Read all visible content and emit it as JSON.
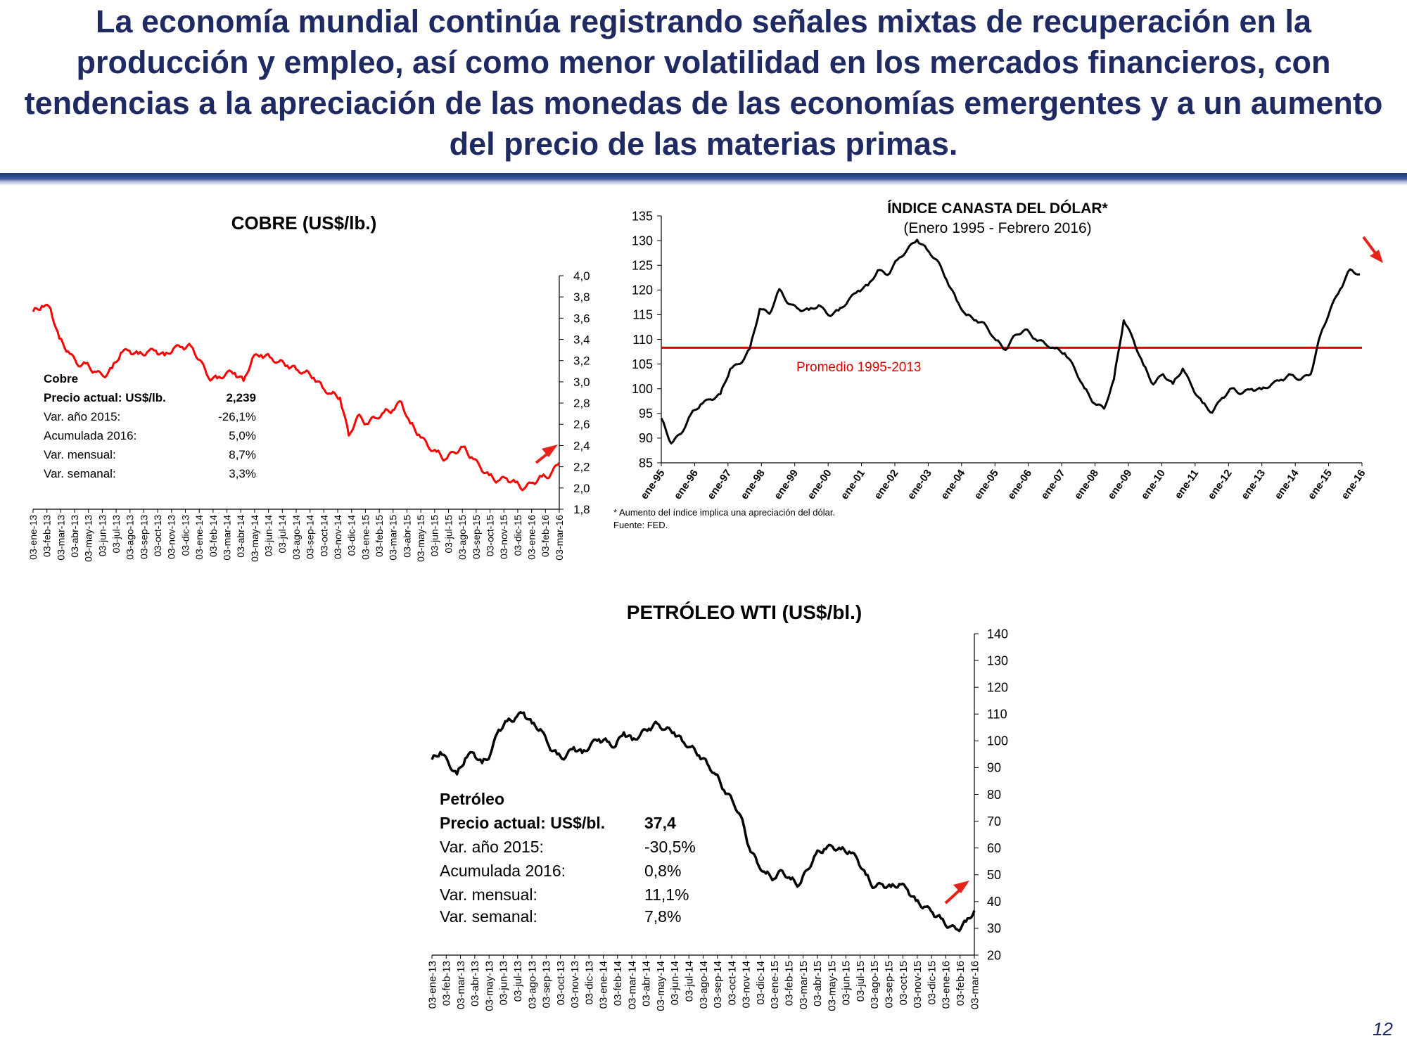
{
  "headline": "La economía mundial continúa registrando señales mixtas de recuperación en la producción y empleo, así como menor volatilidad en los mercados financieros, con tendencias a la apreciación de las monedas de las economías emergentes y a un aumento del precio de las materias primas.",
  "page_number": "12",
  "colors": {
    "headline": "#1f2a63",
    "copper_line": "#ff0000",
    "dollar_line": "#000000",
    "oil_line": "#000000",
    "average_line": "#e00000",
    "arrow": "#e8211a",
    "rule_dark": "#1f3a73"
  },
  "chart_data": [
    {
      "id": "copper",
      "type": "line",
      "title": "COBRE (US$/lb.)",
      "ylim": [
        1.8,
        4.0
      ],
      "y_ticks": [
        "4,0",
        "3,8",
        "3,6",
        "3,4",
        "3,2",
        "3,0",
        "2,8",
        "2,6",
        "2,4",
        "2,2",
        "2,0",
        "1,8"
      ],
      "x_ticks": [
        "03-ene-13",
        "03-feb-13",
        "03-mar-13",
        "03-abr-13",
        "03-may-13",
        "03-jun-13",
        "03-jul-13",
        "03-ago-13",
        "03-sep-13",
        "03-oct-13",
        "03-nov-13",
        "03-dic-13",
        "03-ene-14",
        "03-feb-14",
        "03-mar-14",
        "03-abr-14",
        "03-may-14",
        "03-jun-14",
        "03-jul-14",
        "03-ago-14",
        "03-sep-14",
        "03-oct-14",
        "03-nov-14",
        "03-dic-14",
        "03-ene-15",
        "03-feb-15",
        "03-mar-15",
        "03-abr-15",
        "03-may-15",
        "03-jun-15",
        "03-jul-15",
        "03-ago-15",
        "03-sep-15",
        "03-oct-15",
        "03-nov-15",
        "03-dic-15",
        "03-ene-16",
        "03-feb-16",
        "03-mar-16"
      ],
      "series": [
        {
          "values": [
            3.66,
            3.72,
            3.7,
            3.42,
            3.3,
            3.18,
            3.18,
            3.1,
            3.05,
            3.12,
            3.26,
            3.28,
            3.25,
            3.27,
            3.29,
            3.25,
            3.32,
            3.34,
            3.35,
            3.22,
            3.05,
            3.04,
            3.08,
            3.08,
            3.0,
            3.21,
            3.24,
            3.22,
            3.18,
            3.15,
            3.12,
            3.1,
            3.05,
            2.96,
            2.9,
            2.86,
            2.5,
            2.68,
            2.6,
            2.65,
            2.7,
            2.72,
            2.8,
            2.6,
            2.5,
            2.4,
            2.35,
            2.28,
            2.35,
            2.4,
            2.3,
            2.2,
            2.12,
            2.06,
            2.08,
            2.04,
            1.98,
            2.04,
            2.1,
            2.12,
            2.24
          ]
        }
      ],
      "info": {
        "heading": "Cobre",
        "rows": [
          {
            "label": "Precio actual: US$/lb.",
            "value": "2,239",
            "bold": true
          },
          {
            "label": "Var. año 2015:",
            "value": "-26,1%"
          },
          {
            "label": "Acumulada 2016:",
            "value": "5,0%"
          },
          {
            "label": "Var. mensual:",
            "value": "8,7%"
          },
          {
            "label": "Var. semanal:",
            "value": "3,3%"
          }
        ]
      }
    },
    {
      "id": "dollar",
      "type": "line",
      "title": "ÍNDICE CANASTA DEL DÓLAR*",
      "subtitle": "(Enero 1995 -  Febrero 2016)",
      "ylim": [
        85,
        135
      ],
      "y_ticks": [
        "135",
        "130",
        "125",
        "120",
        "115",
        "110",
        "105",
        "100",
        "95",
        "90",
        "85"
      ],
      "x_ticks": [
        "ene-95",
        "ene-96",
        "ene-97",
        "ene-98",
        "ene-99",
        "ene-00",
        "ene-01",
        "ene-02",
        "ene-03",
        "ene-04",
        "ene-05",
        "ene-06",
        "ene-07",
        "ene-08",
        "ene-09",
        "ene-10",
        "ene-11",
        "ene-12",
        "ene-13",
        "ene-14",
        "ene-15",
        "ene-16"
      ],
      "series": [
        {
          "values": [
            94,
            89,
            91,
            95,
            97,
            98,
            99,
            104,
            105,
            108,
            116,
            115,
            120,
            117,
            116,
            116,
            117,
            115,
            116,
            118,
            120,
            121,
            124,
            123,
            126,
            128,
            130,
            128,
            126,
            122,
            118,
            115,
            114,
            113,
            110,
            108,
            111,
            112,
            110,
            109,
            108,
            107,
            104,
            100,
            97,
            96,
            102,
            114,
            110,
            105,
            101,
            103,
            101,
            104,
            100,
            97,
            95,
            98,
            100,
            99,
            100,
            100,
            101,
            102,
            103,
            102,
            103,
            111,
            116,
            120,
            124,
            123
          ]
        }
      ],
      "reference": {
        "value": 108.3,
        "label": "Promedio 1995-2013"
      },
      "notes": [
        "* Aumento del índice  implica una apreciación del dólar.",
        "Fuente: FED."
      ]
    },
    {
      "id": "oil",
      "type": "line",
      "title": "PETRÓLEO WTI (US$/bl.)",
      "ylim": [
        20,
        140
      ],
      "y_ticks": [
        "140",
        "130",
        "120",
        "110",
        "100",
        "90",
        "80",
        "70",
        "60",
        "50",
        "40",
        "30",
        "20"
      ],
      "x_ticks": [
        "03-ene-13",
        "03-feb-13",
        "03-mar-13",
        "03-abr-13",
        "03-may-13",
        "03-jun-13",
        "03-jul-13",
        "03-ago-13",
        "03-sep-13",
        "03-oct-13",
        "03-nov-13",
        "03-dic-13",
        "03-ene-14",
        "03-feb-14",
        "03-mar-14",
        "03-abr-14",
        "03-may-14",
        "03-jun-14",
        "03-jul-14",
        "03-ago-14",
        "03-sep-14",
        "03-oct-14",
        "03-nov-14",
        "03-dic-14",
        "03-ene-15",
        "03-feb-15",
        "03-mar-15",
        "03-abr-15",
        "03-may-15",
        "03-jun-15",
        "03-jul-15",
        "03-ago-15",
        "03-sep-15",
        "03-oct-15",
        "03-nov-15",
        "03-dic-15",
        "03-ene-16",
        "03-feb-16",
        "03-mar-16"
      ],
      "series": [
        {
          "values": [
            93,
            96,
            92,
            88,
            94,
            96,
            92,
            95,
            104,
            107,
            108,
            110,
            106,
            104,
            98,
            95,
            94,
            98,
            96,
            99,
            101,
            100,
            98,
            103,
            100,
            102,
            104,
            106,
            104,
            103,
            100,
            98,
            95,
            92,
            88,
            82,
            78,
            72,
            60,
            54,
            50,
            48,
            51,
            48,
            46,
            52,
            58,
            60,
            61,
            60,
            59,
            56,
            50,
            45,
            46,
            45,
            46,
            44,
            40,
            38,
            36,
            34,
            31,
            30,
            33,
            37
          ]
        }
      ],
      "info": {
        "heading": "Petróleo",
        "rows": [
          {
            "label": "Precio actual: US$/bl.",
            "value": "37,4",
            "bold": true
          },
          {
            "label": "Var. año 2015:",
            "value": "-30,5%"
          },
          {
            "label": "Acumulada 2016:",
            "value": "0,8%"
          },
          {
            "label": "Var. mensual:",
            "value": "11,1%"
          },
          {
            "label": "Var. semanal:",
            "value": "7,8%"
          }
        ]
      }
    }
  ]
}
